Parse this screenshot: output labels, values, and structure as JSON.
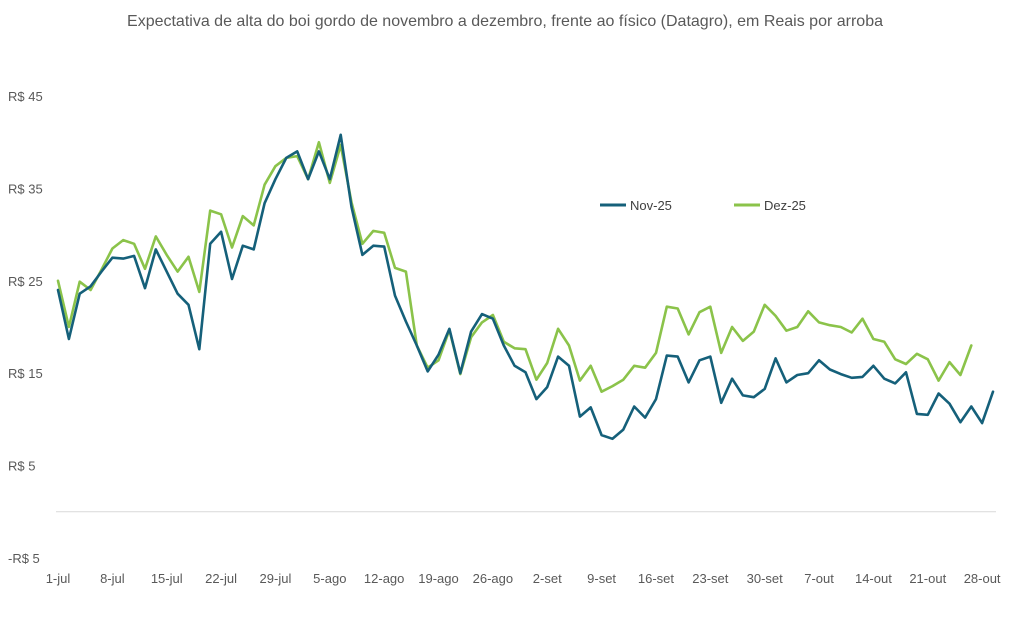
{
  "chart_data": {
    "type": "line",
    "title": "Expectativa de alta do boi gordo de novembro a dezembro, frente ao físico (Datagro), em Reais por arroba",
    "xlabel": "",
    "ylabel": "",
    "ylim": [
      -5,
      45
    ],
    "yticks": [
      -5,
      5,
      15,
      25,
      35,
      45
    ],
    "ytick_labels": [
      "-R$ 5",
      "R$ 5",
      "R$ 15",
      "R$ 25",
      "R$ 35",
      "R$ 45"
    ],
    "xtick_labels": [
      "1-jul",
      "8-jul",
      "15-jul",
      "22-jul",
      "29-jul",
      "5-ago",
      "12-ago",
      "19-ago",
      "26-ago",
      "2-set",
      "9-set",
      "16-set",
      "23-set",
      "30-set",
      "7-out",
      "14-out",
      "21-out",
      "28-out"
    ],
    "legend_position": "upper-right",
    "colors": {
      "Nov-25": "#15607a",
      "Dez-25": "#8bc34a",
      "axis": "#d9d9d9"
    },
    "series": [
      {
        "name": "Nov-25",
        "values": [
          24,
          18.7,
          23.6,
          24.4,
          26,
          27.5,
          27.4,
          27.7,
          24.2,
          28.4,
          26,
          23.6,
          22.4,
          17.6,
          29,
          30.3,
          25.2,
          28.8,
          28.4,
          33.4,
          36,
          38.3,
          39,
          36,
          39,
          36,
          40.8,
          33,
          27.8,
          28.8,
          28.7,
          23.4,
          20.6,
          18,
          15.2,
          17,
          19.8,
          15,
          19.5,
          21.4,
          20.9,
          18,
          15.8,
          15.1,
          12.2,
          13.5,
          16.8,
          15.8,
          10.3,
          11.3,
          8.3,
          7.9,
          8.9,
          11.4,
          10.2,
          12.2,
          16.9,
          16.8,
          14,
          16.4,
          16.8,
          11.8,
          14.4,
          12.6,
          12.4,
          13.3,
          16.6,
          14,
          14.8,
          15,
          16.4,
          15.4,
          14.9,
          14.5,
          14.6,
          15.8,
          14.4,
          13.9,
          15.1,
          10.6,
          10.5,
          12.8,
          11.7,
          9.7,
          11.4,
          9.6,
          13
        ]
      },
      {
        "name": "Dez-25",
        "values": [
          25,
          20,
          24.9,
          24,
          26.2,
          28.5,
          29.4,
          29,
          26.3,
          29.8,
          27.8,
          26,
          27.6,
          23.8,
          32.6,
          32.2,
          28.6,
          32,
          31,
          35.4,
          37.4,
          38.3,
          38.5,
          36,
          40,
          35.6,
          39.7,
          33.5,
          29,
          30.4,
          30.2,
          26.4,
          26,
          18,
          15.6,
          16.4,
          19.7,
          14.9,
          18.9,
          20.5,
          21.3,
          18.4,
          17.7,
          17.6,
          14.3,
          16.1,
          19.8,
          18,
          14.2,
          15.8,
          13,
          13.6,
          14.3,
          15.8,
          15.6,
          17.2,
          22.2,
          22,
          19.2,
          21.6,
          22.2,
          17.2,
          20,
          18.5,
          19.5,
          22.4,
          21.2,
          19.6,
          20,
          21.7,
          20.5,
          20.2,
          20,
          19.4,
          20.9,
          18.7,
          18.4,
          16.5,
          16,
          17.1,
          16.5,
          14.2,
          16.2,
          14.8,
          18
        ]
      }
    ]
  }
}
